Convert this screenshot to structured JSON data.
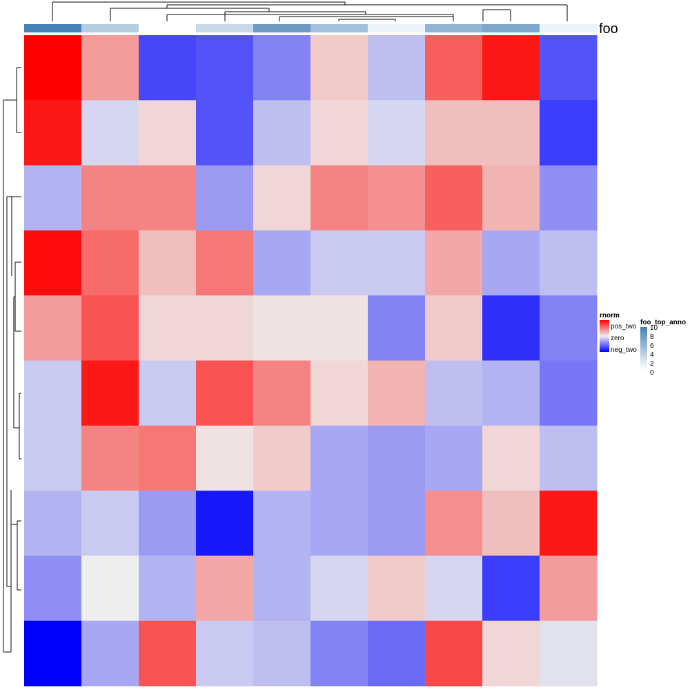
{
  "chart_data": {
    "type": "heatmap",
    "n_rows": 10,
    "n_cols": 10,
    "values": [
      [
        2.0,
        0.7,
        -1.4,
        -1.3,
        -0.9,
        0.3,
        -0.4,
        1.2,
        1.8,
        -1.3
      ],
      [
        1.8,
        -0.2,
        0.2,
        -1.3,
        -0.4,
        0.2,
        -0.2,
        0.4,
        0.4,
        -1.5
      ],
      [
        -0.5,
        0.9,
        0.9,
        -0.7,
        0.2,
        0.9,
        0.8,
        1.2,
        0.5,
        -0.8
      ],
      [
        1.9,
        1.1,
        0.4,
        1.0,
        -0.6,
        -0.3,
        -0.3,
        0.6,
        -0.6,
        -0.4
      ],
      [
        0.7,
        1.3,
        0.2,
        0.2,
        0.1,
        0.1,
        -0.9,
        0.3,
        -1.6,
        -0.9
      ],
      [
        -0.3,
        1.8,
        -0.3,
        1.3,
        0.9,
        0.2,
        0.5,
        -0.4,
        -0.5,
        -1.0
      ],
      [
        -0.3,
        0.9,
        1.0,
        0.1,
        0.3,
        -0.6,
        -0.7,
        -0.6,
        0.2,
        -0.4
      ],
      [
        -0.5,
        -0.3,
        -0.7,
        -1.8,
        -0.5,
        -0.6,
        -0.7,
        0.8,
        0.4,
        1.8
      ],
      [
        -0.8,
        0.0,
        -0.5,
        0.6,
        -0.5,
        -0.2,
        0.3,
        -0.2,
        -1.5,
        0.7
      ],
      [
        -2.0,
        -0.6,
        1.3,
        -0.3,
        -0.4,
        -0.9,
        -1.1,
        1.4,
        0.2,
        -0.1
      ]
    ],
    "top_annotation": {
      "name": "foo_top_anno",
      "label": "foo",
      "values": [
        10,
        4,
        0,
        3,
        8,
        5,
        1,
        6,
        7,
        1
      ],
      "range": [
        0,
        10
      ]
    },
    "row_dendrogram": true,
    "column_dendrogram": true,
    "legends": [
      {
        "title": "rnorm",
        "labels": [
          "pos_two",
          "zero",
          "neg_two"
        ],
        "values": [
          2,
          0,
          -2
        ],
        "colors": [
          "#ff0000",
          "#eeeeee",
          "#0000ff"
        ]
      },
      {
        "title": "foo_top_anno",
        "labels": [
          "10",
          "8",
          "6",
          "4",
          "2",
          "0"
        ],
        "values": [
          10,
          8,
          6,
          4,
          2,
          0
        ],
        "colors": [
          "#4682b4",
          "#ffffff"
        ]
      }
    ],
    "legend_placement": "right"
  }
}
